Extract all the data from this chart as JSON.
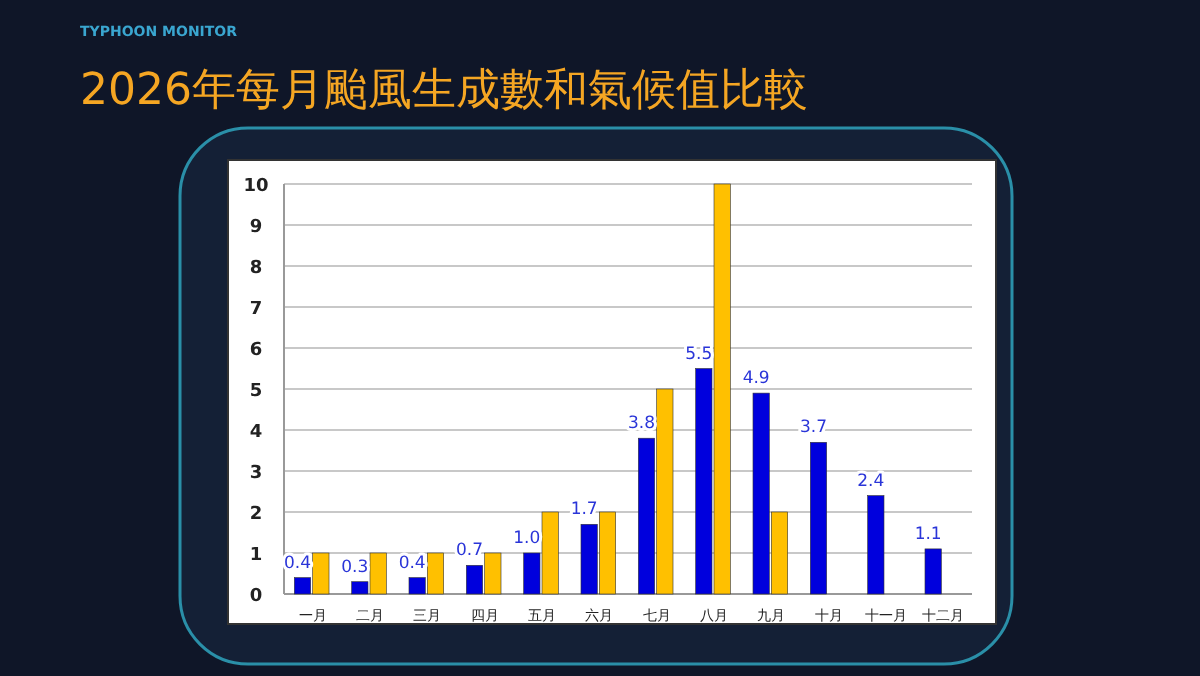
{
  "chart_data": {
    "type": "bar",
    "title": "2026年每月颱風生成數和氣候值比較",
    "subtitle": "TYPHOON MONITOR",
    "categories": [
      "一月",
      "二月",
      "三月",
      "四月",
      "五月",
      "六月",
      "七月",
      "八月",
      "九月",
      "十月",
      "十一月",
      "十二月"
    ],
    "series": [
      {
        "color": "#0000dd",
        "values": [
          0.4,
          0.3,
          0.4,
          0.7,
          1.0,
          1.7,
          3.8,
          5.5,
          4.9,
          3.7,
          2.4,
          1.1
        ],
        "value_labels": [
          "0.4",
          "0.3",
          "0.4",
          "0.7",
          "1.0",
          "1.7",
          "3.8",
          "5.5",
          "4.9",
          "3.7",
          "2.4",
          "1.1"
        ]
      },
      {
        "color": "#ffc000",
        "values": [
          1,
          1,
          1,
          1,
          2,
          2,
          5,
          10,
          2,
          null,
          null,
          null
        ]
      }
    ],
    "ylim": [
      0,
      10
    ],
    "yticks": [
      0,
      1,
      2,
      3,
      4,
      5,
      6,
      7,
      8,
      9,
      10
    ],
    "grid": "y"
  }
}
